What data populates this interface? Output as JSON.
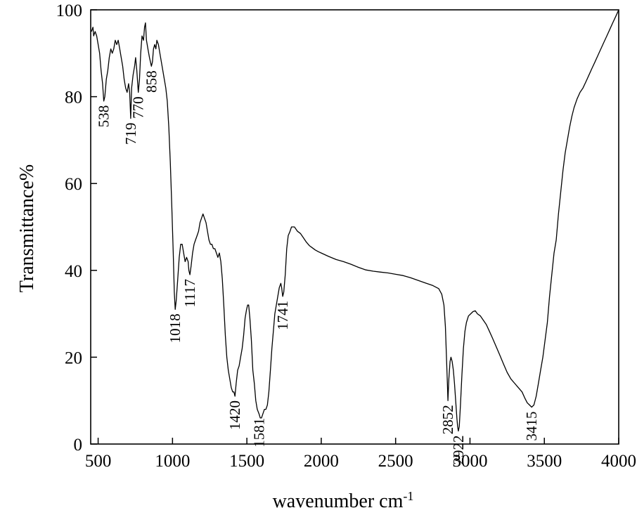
{
  "chart_data": {
    "type": "line",
    "xlabel": "wavenumber cm",
    "xlabel_sup": "-1",
    "ylabel": "Transmittance%",
    "xlim": [
      450,
      4000
    ],
    "ylim": [
      0,
      100
    ],
    "x_ticks": [
      500,
      1000,
      1500,
      2000,
      2500,
      3000,
      3500,
      4000
    ],
    "y_ticks": [
      0,
      20,
      40,
      60,
      80,
      100
    ],
    "grid": false,
    "line_color": "#000000",
    "series": [
      {
        "points": [
          [
            455,
            95
          ],
          [
            465,
            96
          ],
          [
            470,
            94
          ],
          [
            480,
            95
          ],
          [
            490,
            94
          ],
          [
            500,
            92
          ],
          [
            510,
            90
          ],
          [
            520,
            86
          ],
          [
            530,
            83
          ],
          [
            538,
            79
          ],
          [
            545,
            80
          ],
          [
            555,
            84
          ],
          [
            565,
            86
          ],
          [
            575,
            89
          ],
          [
            585,
            91
          ],
          [
            595,
            90
          ],
          [
            605,
            91
          ],
          [
            615,
            93
          ],
          [
            625,
            92
          ],
          [
            635,
            93
          ],
          [
            645,
            91
          ],
          [
            655,
            89
          ],
          [
            665,
            87
          ],
          [
            675,
            84
          ],
          [
            685,
            82
          ],
          [
            695,
            81
          ],
          [
            705,
            83
          ],
          [
            712,
            81
          ],
          [
            719,
            75
          ],
          [
            725,
            82
          ],
          [
            735,
            85
          ],
          [
            745,
            87
          ],
          [
            752,
            89
          ],
          [
            760,
            86
          ],
          [
            770,
            81
          ],
          [
            778,
            84
          ],
          [
            786,
            90
          ],
          [
            795,
            94
          ],
          [
            805,
            93
          ],
          [
            812,
            96
          ],
          [
            818,
            97
          ],
          [
            825,
            93
          ],
          [
            835,
            91
          ],
          [
            845,
            89
          ],
          [
            852,
            88
          ],
          [
            858,
            87
          ],
          [
            865,
            88
          ],
          [
            872,
            91
          ],
          [
            880,
            92
          ],
          [
            888,
            91
          ],
          [
            895,
            93
          ],
          [
            905,
            92
          ],
          [
            915,
            90
          ],
          [
            925,
            88
          ],
          [
            935,
            86
          ],
          [
            945,
            84
          ],
          [
            955,
            82
          ],
          [
            965,
            79
          ],
          [
            975,
            73
          ],
          [
            985,
            65
          ],
          [
            995,
            55
          ],
          [
            1005,
            44
          ],
          [
            1012,
            35
          ],
          [
            1018,
            31
          ],
          [
            1025,
            33
          ],
          [
            1035,
            38
          ],
          [
            1045,
            43
          ],
          [
            1055,
            46
          ],
          [
            1065,
            46
          ],
          [
            1075,
            44
          ],
          [
            1085,
            42
          ],
          [
            1095,
            43
          ],
          [
            1105,
            42
          ],
          [
            1110,
            40
          ],
          [
            1117,
            39
          ],
          [
            1125,
            41
          ],
          [
            1135,
            44
          ],
          [
            1145,
            46
          ],
          [
            1155,
            47
          ],
          [
            1165,
            48
          ],
          [
            1175,
            49
          ],
          [
            1185,
            51
          ],
          [
            1195,
            52
          ],
          [
            1205,
            53
          ],
          [
            1215,
            52
          ],
          [
            1225,
            51
          ],
          [
            1235,
            49
          ],
          [
            1245,
            47
          ],
          [
            1255,
            46
          ],
          [
            1265,
            46
          ],
          [
            1275,
            45
          ],
          [
            1285,
            45
          ],
          [
            1295,
            44
          ],
          [
            1305,
            43
          ],
          [
            1315,
            44
          ],
          [
            1325,
            42
          ],
          [
            1335,
            38
          ],
          [
            1345,
            32
          ],
          [
            1355,
            25
          ],
          [
            1365,
            20
          ],
          [
            1375,
            17
          ],
          [
            1385,
            15
          ],
          [
            1395,
            13
          ],
          [
            1405,
            12
          ],
          [
            1413,
            12
          ],
          [
            1420,
            11
          ],
          [
            1428,
            14
          ],
          [
            1438,
            17
          ],
          [
            1448,
            18
          ],
          [
            1458,
            20
          ],
          [
            1468,
            22
          ],
          [
            1478,
            25
          ],
          [
            1488,
            29
          ],
          [
            1498,
            31
          ],
          [
            1505,
            32
          ],
          [
            1512,
            32
          ],
          [
            1520,
            29
          ],
          [
            1530,
            24
          ],
          [
            1540,
            17
          ],
          [
            1550,
            14
          ],
          [
            1560,
            10
          ],
          [
            1570,
            8
          ],
          [
            1581,
            7
          ],
          [
            1590,
            6
          ],
          [
            1598,
            6
          ],
          [
            1608,
            7
          ],
          [
            1618,
            8
          ],
          [
            1628,
            8
          ],
          [
            1638,
            9
          ],
          [
            1648,
            12
          ],
          [
            1658,
            17
          ],
          [
            1668,
            22
          ],
          [
            1678,
            26
          ],
          [
            1688,
            30
          ],
          [
            1698,
            32
          ],
          [
            1708,
            34
          ],
          [
            1718,
            36
          ],
          [
            1728,
            37
          ],
          [
            1734,
            36
          ],
          [
            1741,
            34
          ],
          [
            1748,
            35
          ],
          [
            1758,
            39
          ],
          [
            1768,
            45
          ],
          [
            1778,
            48
          ],
          [
            1790,
            49
          ],
          [
            1800,
            50
          ],
          [
            1820,
            50
          ],
          [
            1840,
            49
          ],
          [
            1860,
            48.5
          ],
          [
            1880,
            47.5
          ],
          [
            1900,
            46.5
          ],
          [
            1920,
            45.7
          ],
          [
            1940,
            45.2
          ],
          [
            1960,
            44.7
          ],
          [
            1980,
            44.3
          ],
          [
            2000,
            44
          ],
          [
            2050,
            43.2
          ],
          [
            2100,
            42.5
          ],
          [
            2150,
            42
          ],
          [
            2200,
            41.4
          ],
          [
            2250,
            40.7
          ],
          [
            2300,
            40.1
          ],
          [
            2350,
            39.8
          ],
          [
            2400,
            39.6
          ],
          [
            2450,
            39.4
          ],
          [
            2500,
            39.1
          ],
          [
            2550,
            38.8
          ],
          [
            2600,
            38.3
          ],
          [
            2650,
            37.7
          ],
          [
            2700,
            37.1
          ],
          [
            2750,
            36.5
          ],
          [
            2790,
            35.8
          ],
          [
            2810,
            34.5
          ],
          [
            2825,
            32
          ],
          [
            2835,
            27
          ],
          [
            2842,
            20
          ],
          [
            2848,
            14
          ],
          [
            2852,
            10
          ],
          [
            2858,
            15
          ],
          [
            2866,
            19
          ],
          [
            2872,
            20
          ],
          [
            2880,
            19
          ],
          [
            2888,
            17
          ],
          [
            2896,
            14
          ],
          [
            2904,
            10
          ],
          [
            2912,
            6
          ],
          [
            2917,
            4
          ],
          [
            2922,
            3
          ],
          [
            2928,
            4
          ],
          [
            2936,
            9
          ],
          [
            2946,
            16
          ],
          [
            2956,
            22
          ],
          [
            2966,
            26
          ],
          [
            2976,
            28
          ],
          [
            2990,
            29.5
          ],
          [
            3005,
            30
          ],
          [
            3020,
            30.5
          ],
          [
            3035,
            30.7
          ],
          [
            3050,
            30
          ],
          [
            3070,
            29.5
          ],
          [
            3090,
            28.5
          ],
          [
            3110,
            27.5
          ],
          [
            3130,
            26
          ],
          [
            3150,
            24.5
          ],
          [
            3175,
            22.5
          ],
          [
            3200,
            20.5
          ],
          [
            3225,
            18.5
          ],
          [
            3250,
            16.5
          ],
          [
            3275,
            15
          ],
          [
            3300,
            14
          ],
          [
            3325,
            13
          ],
          [
            3350,
            12
          ],
          [
            3370,
            10.5
          ],
          [
            3385,
            9.5
          ],
          [
            3400,
            9
          ],
          [
            3415,
            8.5
          ],
          [
            3430,
            9
          ],
          [
            3445,
            11
          ],
          [
            3460,
            14
          ],
          [
            3475,
            17
          ],
          [
            3490,
            20
          ],
          [
            3505,
            24
          ],
          [
            3520,
            28
          ],
          [
            3535,
            34
          ],
          [
            3550,
            39
          ],
          [
            3565,
            44
          ],
          [
            3580,
            47
          ],
          [
            3595,
            53
          ],
          [
            3610,
            58
          ],
          [
            3625,
            63
          ],
          [
            3640,
            67
          ],
          [
            3655,
            70
          ],
          [
            3670,
            73
          ],
          [
            3685,
            75.5
          ],
          [
            3700,
            77.5
          ],
          [
            3720,
            79.5
          ],
          [
            3740,
            81
          ],
          [
            3760,
            82
          ],
          [
            3780,
            83.5
          ],
          [
            3800,
            85
          ],
          [
            3820,
            86.5
          ],
          [
            3840,
            88
          ],
          [
            3860,
            89.5
          ],
          [
            3880,
            91
          ],
          [
            3900,
            92.5
          ],
          [
            3920,
            94
          ],
          [
            3940,
            95.5
          ],
          [
            3960,
            97
          ],
          [
            3980,
            98.5
          ],
          [
            4000,
            100
          ]
        ]
      }
    ],
    "annotations": [
      {
        "text": "538",
        "x": 538,
        "y": 79
      },
      {
        "text": "719",
        "x": 719,
        "y": 75
      },
      {
        "text": "770",
        "x": 770,
        "y": 81
      },
      {
        "text": "858",
        "x": 858,
        "y": 87
      },
      {
        "text": "1018",
        "x": 1018,
        "y": 31
      },
      {
        "text": "1117",
        "x": 1117,
        "y": 39
      },
      {
        "text": "1420",
        "x": 1420,
        "y": 11
      },
      {
        "text": "1581",
        "x": 1581,
        "y": 7
      },
      {
        "text": "1741",
        "x": 1741,
        "y": 34
      },
      {
        "text": "2852",
        "x": 2852,
        "y": 10
      },
      {
        "text": "2922",
        "x": 2922,
        "y": 3
      },
      {
        "text": "3415",
        "x": 3415,
        "y": 8.5
      }
    ]
  }
}
